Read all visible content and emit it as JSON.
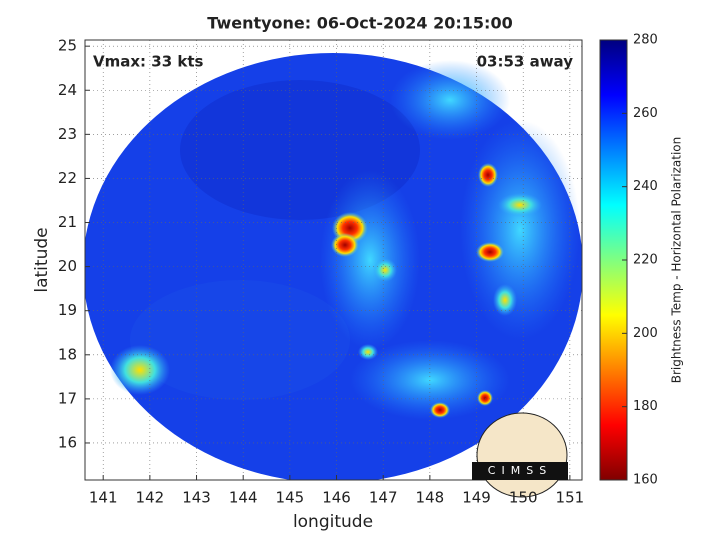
{
  "chart_data": {
    "type": "image",
    "title": "Twentyone: 06-Oct-2024 20:15:00",
    "annotations": [
      "Vmax: 33 kts",
      "03:53 away"
    ],
    "xlabel": "longitude",
    "ylabel": "latitude",
    "xlim": [
      140.61,
      151.26
    ],
    "xticks": [
      141,
      142,
      143,
      144,
      145,
      146,
      147,
      148,
      149,
      150,
      151
    ],
    "ylim": [
      15.16,
      25.14
    ],
    "yticks": [
      16,
      17,
      18,
      19,
      20,
      21,
      22,
      23,
      24,
      25
    ],
    "grid": true,
    "colorbar": {
      "label": "Brightness Temp - Horizontal Polarization",
      "lim": [
        160,
        280
      ],
      "ticks": [
        160,
        180,
        200,
        220,
        240,
        260,
        280
      ],
      "colormap": [
        "#800000",
        "#ff0000",
        "#ff8000",
        "#ffff00",
        "#80ff80",
        "#00ffff",
        "#0080ff",
        "#0000ff",
        "#000080"
      ]
    },
    "logo": "CIMSS"
  }
}
